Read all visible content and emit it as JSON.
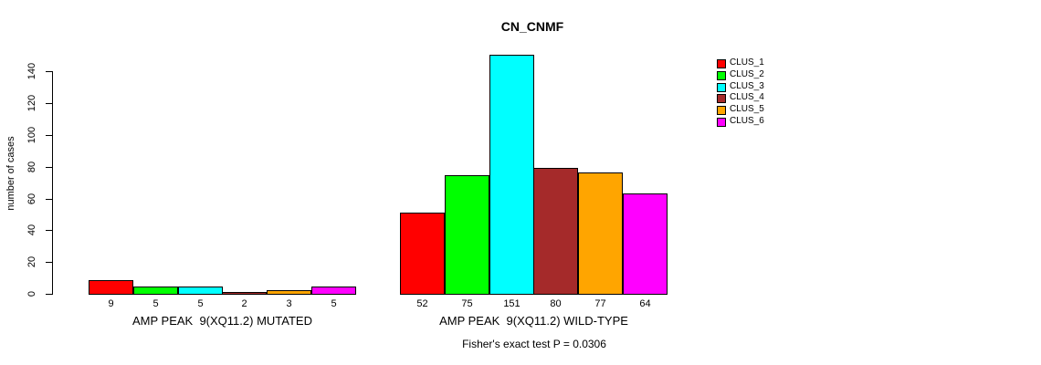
{
  "chart_data": {
    "type": "bar",
    "title": "CN_CNMF",
    "ylabel": "number of cases",
    "xlabel": "",
    "ylim": [
      0,
      140
    ],
    "yticks": [
      0,
      20,
      40,
      60,
      80,
      100,
      120,
      140
    ],
    "grid": false,
    "legend_position": "right-inside-top",
    "categories": [
      "AMP PEAK  9(XQ11.2) MUTATED",
      "AMP PEAK  9(XQ11.2) WILD-TYPE"
    ],
    "series": [
      {
        "name": "CLUS_1",
        "color": "#FF0000",
        "values": [
          9,
          52
        ]
      },
      {
        "name": "CLUS_2",
        "color": "#00FF00",
        "values": [
          5,
          75
        ]
      },
      {
        "name": "CLUS_3",
        "color": "#00FFFF",
        "values": [
          5,
          151
        ]
      },
      {
        "name": "CLUS_4",
        "color": "#A52A2A",
        "values": [
          2,
          80
        ]
      },
      {
        "name": "CLUS_5",
        "color": "#FFA500",
        "values": [
          3,
          77
        ]
      },
      {
        "name": "CLUS_6",
        "color": "#FF00FF",
        "values": [
          5,
          64
        ]
      }
    ],
    "bar_value_labels": [
      [
        9,
        5,
        5,
        2,
        3,
        5
      ],
      [
        52,
        75,
        151,
        80,
        77,
        64
      ]
    ],
    "annotation": "Fisher's exact test P = 0.0306"
  }
}
